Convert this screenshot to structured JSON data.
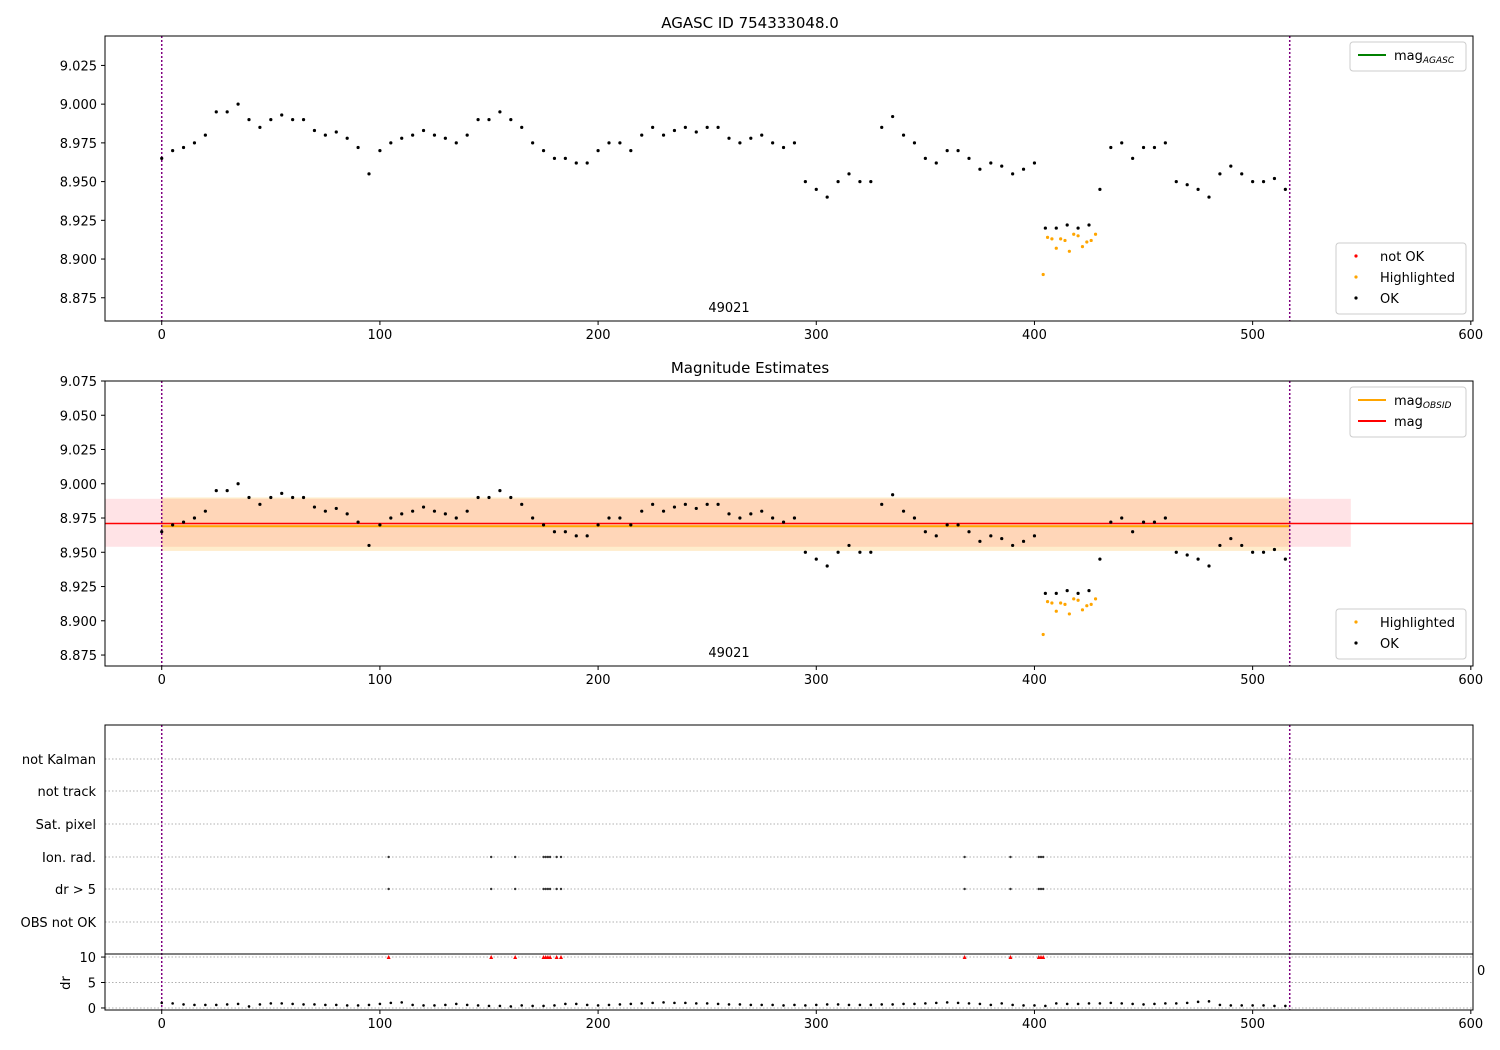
{
  "chart_data": [
    {
      "type": "scatter",
      "title": "AGASC ID 754333048.0",
      "xlim": [
        -26,
        601
      ],
      "ylim": [
        8.86,
        9.044
      ],
      "xticks": [
        0,
        100,
        200,
        300,
        400,
        500,
        600
      ],
      "yticks": [
        8.875,
        8.9,
        8.925,
        8.95,
        8.975,
        9.0,
        9.025
      ],
      "ytick_labels": [
        "8.875",
        "8.900",
        "8.925",
        "8.950",
        "8.975",
        "9.000",
        "9.025"
      ],
      "obsid_label": "49021",
      "vlines": [
        0,
        517
      ],
      "legend_upper": [
        {
          "label": "mag",
          "sub": "AGASC",
          "color": "#008000"
        }
      ],
      "legend_lower": [
        {
          "label": "not OK",
          "color": "#ff0000"
        },
        {
          "label": "Highlighted",
          "color": "#ffa500"
        },
        {
          "label": "OK",
          "color": "#000000"
        }
      ],
      "legend_placement": [
        "top-right",
        "bottom-right"
      ]
    },
    {
      "type": "scatter",
      "title": "Magnitude Estimates",
      "xlim": [
        -26,
        601
      ],
      "ylim": [
        8.867,
        9.075
      ],
      "xticks": [
        0,
        100,
        200,
        300,
        400,
        500,
        600
      ],
      "yticks": [
        8.875,
        8.9,
        8.925,
        8.95,
        8.975,
        9.0,
        9.025,
        9.05,
        9.075
      ],
      "ytick_labels": [
        "8.875",
        "8.900",
        "8.925",
        "8.950",
        "8.975",
        "9.000",
        "9.025",
        "9.050",
        "9.075"
      ],
      "obsid_label": "49021",
      "vlines": [
        0,
        517
      ],
      "mag": 8.971,
      "mag_band": [
        8.954,
        8.989
      ],
      "mag_band_x": [
        -26,
        545
      ],
      "mag_obsid": 8.969,
      "mag_obsid_band": [
        8.951,
        8.99
      ],
      "mag_obsid_band_x": [
        0,
        517
      ],
      "legend_upper": [
        {
          "label": "mag",
          "sub": "OBSID",
          "color": "#ffa500"
        },
        {
          "label": "mag",
          "sub": "",
          "color": "#ff0000"
        }
      ],
      "legend_lower": [
        {
          "label": "Highlighted",
          "color": "#ffa500"
        },
        {
          "label": "OK",
          "color": "#000000"
        }
      ],
      "legend_placement": [
        "top-right",
        "bottom-right"
      ]
    },
    {
      "type": "scatter",
      "title": "",
      "flag_rows": [
        "not Kalman",
        "not track",
        "Sat. pixel",
        "Ion. rad.",
        "dr > 5",
        "OBS not OK"
      ],
      "flags": {
        "Ion. rad.": [
          104,
          151,
          162,
          175,
          176,
          177,
          178,
          181,
          183,
          368,
          389,
          402,
          403,
          404
        ],
        "dr > 5": [
          104,
          151,
          162,
          175,
          176,
          177,
          178,
          181,
          183,
          368,
          389,
          402,
          403,
          404
        ]
      },
      "ylabel": "dr",
      "dr_ylim": [
        -0.4,
        10.6
      ],
      "dr_yticks": [
        0,
        5,
        10
      ],
      "dr_clipped_at": 10,
      "dr_clipped_indices": [
        104,
        151,
        162,
        175,
        176,
        177,
        178,
        181,
        183,
        368,
        389,
        402,
        403,
        404
      ],
      "clipped_tick_text": "0",
      "xticks": [
        0,
        100,
        200,
        300,
        400,
        500,
        600
      ],
      "vlines": [
        0,
        517
      ]
    }
  ],
  "series": {
    "x_start": 0,
    "x_step": 5,
    "mag": [
      8.965,
      8.97,
      8.972,
      8.975,
      8.98,
      8.995,
      8.995,
      9.0,
      8.99,
      8.985,
      8.99,
      8.993,
      8.99,
      8.99,
      8.983,
      8.98,
      8.982,
      8.978,
      8.972,
      8.955,
      8.97,
      8.975,
      8.978,
      8.98,
      8.983,
      8.98,
      8.978,
      8.975,
      8.98,
      8.99,
      8.99,
      8.995,
      8.99,
      8.985,
      8.975,
      8.97,
      8.965,
      8.965,
      8.962,
      8.962,
      8.97,
      8.975,
      8.975,
      8.97,
      8.98,
      8.985,
      8.98,
      8.983,
      8.985,
      8.982,
      8.985,
      8.985,
      8.978,
      8.975,
      8.978,
      8.98,
      8.975,
      8.972,
      8.975,
      8.95,
      8.945,
      8.94,
      8.95,
      8.955,
      8.95,
      8.95,
      8.985,
      8.992,
      8.98,
      8.975,
      8.965,
      8.962,
      8.97,
      8.97,
      8.965,
      8.958,
      8.962,
      8.96,
      8.955,
      8.958,
      8.962,
      8.92,
      8.92,
      8.922,
      8.92,
      8.922,
      8.945,
      8.972,
      8.975,
      8.965,
      8.972,
      8.972,
      8.975,
      8.95,
      8.948,
      8.945,
      8.94,
      8.955,
      8.96,
      8.955,
      8.95,
      8.95,
      8.952,
      8.945
    ],
    "highlighted_x": [
      404,
      406,
      408,
      410,
      412,
      414,
      416,
      418,
      420,
      422,
      424,
      426,
      428
    ],
    "highlighted_mag": [
      8.89,
      8.914,
      8.913,
      8.907,
      8.913,
      8.912,
      8.905,
      8.916,
      8.915,
      8.908,
      8.911,
      8.912,
      8.916
    ],
    "dr": [
      1.0,
      0.9,
      0.7,
      0.6,
      0.6,
      0.6,
      0.7,
      0.8,
      0.3,
      0.7,
      0.9,
      0.9,
      0.8,
      0.7,
      0.7,
      0.6,
      0.6,
      0.5,
      0.5,
      0.6,
      0.8,
      1.0,
      1.1,
      0.6,
      0.5,
      0.5,
      0.6,
      0.8,
      0.6,
      0.5,
      0.4,
      0.4,
      0.3,
      0.5,
      0.4,
      0.4,
      0.5,
      0.8,
      0.8,
      0.6,
      0.5,
      0.6,
      0.7,
      0.8,
      0.9,
      1.0,
      1.1,
      1.0,
      1.0,
      0.9,
      0.9,
      0.8,
      0.7,
      0.7,
      0.6,
      0.6,
      0.6,
      0.5,
      0.6,
      0.5,
      0.6,
      0.7,
      0.7,
      0.6,
      0.6,
      0.6,
      0.7,
      0.7,
      0.8,
      0.8,
      0.9,
      1.0,
      1.1,
      1.0,
      0.9,
      0.8,
      0.6,
      0.9,
      0.6,
      0.5,
      0.5,
      0.4,
      0.9,
      0.8,
      0.8,
      0.9,
      0.9,
      1.0,
      0.9,
      0.8,
      0.7,
      0.8,
      0.9,
      0.9,
      1.0,
      1.2,
      1.3,
      0.6,
      0.5,
      0.5,
      0.5,
      0.5,
      0.4,
      0.4
    ]
  }
}
